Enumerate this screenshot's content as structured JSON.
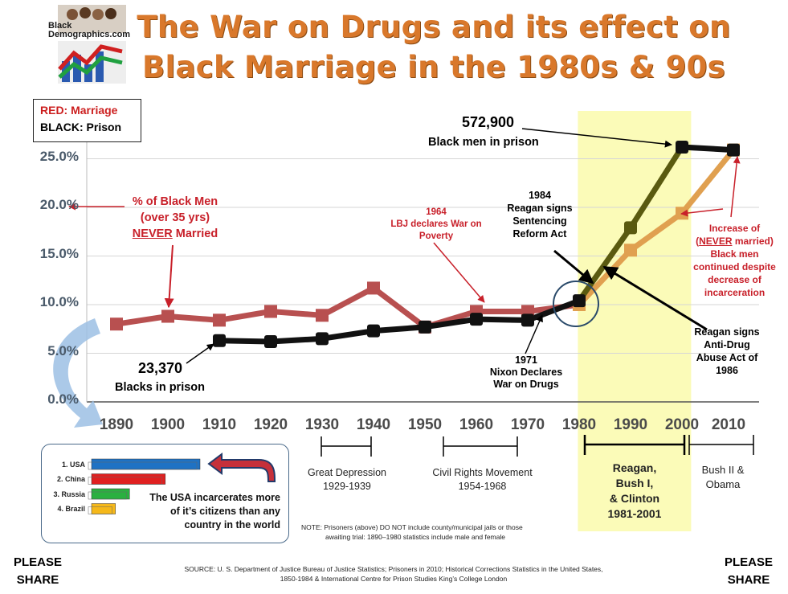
{
  "header": {
    "title_line1": "The War on Drugs and its effect on",
    "title_line2": "Black Marriage in the 1980s & 90s",
    "logo_text_line1": "Black",
    "logo_text_line2": "Demographics.com"
  },
  "legend": {
    "red_label": "RED: Marriage",
    "black_label": "BLACK: Prison"
  },
  "colors": {
    "title": "#d9782b",
    "marriage_red": "#b85050",
    "marriage_orange": "#e0a050",
    "prison_black": "#111111",
    "prison_olive": "#5a5a10",
    "highlight_yellow": "#fbfbb8",
    "annotation_red": "#c8202a"
  },
  "chart_data": {
    "type": "line",
    "x": [
      1890,
      1900,
      1910,
      1920,
      1930,
      1940,
      1950,
      1960,
      1970,
      1980,
      1990,
      2000,
      2010
    ],
    "x_tick_labels": [
      "1890",
      "1900",
      "1910",
      "1920",
      "1930",
      "1940",
      "1950",
      "1960",
      "1970",
      "1980",
      "1990",
      "2000",
      "2010"
    ],
    "y_tick_labels": [
      "0.0%",
      "5.0%",
      "10.0%",
      "15.0%",
      "20.0%",
      "25.0%"
    ],
    "ylim": [
      0,
      27
    ],
    "grid": true,
    "legend_position": "top-left",
    "series": [
      {
        "name": "RED: Marriage",
        "values": [
          8.0,
          8.8,
          8.4,
          9.3,
          8.9,
          11.7,
          7.7,
          9.3,
          9.3,
          10.0,
          15.6,
          19.4,
          25.9
        ]
      },
      {
        "name": "BLACK: Prison",
        "values": [
          null,
          null,
          6.3,
          6.2,
          6.5,
          7.3,
          7.7,
          8.5,
          8.4,
          10.4,
          17.9,
          26.2,
          25.9
        ]
      }
    ],
    "highlight_range": [
      1981,
      2001
    ]
  },
  "annotations": {
    "pct_never_married": [
      "% of Black Men",
      "(over 35 yrs)",
      "NEVER",
      " Married"
    ],
    "lbj": [
      "1964",
      "LBJ declares War on",
      "Poverty"
    ],
    "reagan_1984": [
      "1984",
      "Reagan signs",
      "Sentencing",
      "Reform Act"
    ],
    "prisoners_peak_value": "572,900",
    "prisoners_peak_label": "Black men in prison",
    "prisoners_start_value": "23,370",
    "prisoners_start_label": "Blacks in prison",
    "nixon": [
      "1971",
      "Nixon Declares",
      "War on Drugs"
    ],
    "reagan_1986": [
      "Reagan signs",
      "Anti-Drug",
      "Abuse Act of",
      "1986"
    ],
    "increase": [
      "Increase of",
      "(",
      "NEVER",
      " married)",
      "Black men",
      "continued despite",
      "decrease of",
      "incarceration"
    ]
  },
  "eras": {
    "depression": [
      "Great Depression",
      "1929-1939"
    ],
    "civil_rights": [
      "Civil Rights Movement",
      "1954-1968"
    ],
    "reagan_clinton": [
      "Reagan,",
      "Bush I,",
      "& Clinton",
      "1981-2001"
    ],
    "bush_obama": [
      "Bush II &",
      "Obama"
    ]
  },
  "panel": {
    "countries": [
      "1. USA",
      "2. China",
      "3. Russia",
      "4. Brazil"
    ],
    "bar_values": [
      100,
      68,
      35,
      22
    ],
    "bar_colors": [
      "#1f72c4",
      "#e02020",
      "#2ab040",
      "#f5b81a"
    ],
    "text": [
      "The USA incarcerates more",
      "of it’s citizens than any",
      "country in the world"
    ]
  },
  "footer": {
    "note_line1": "NOTE:  Prisoners (above) DO NOT  include county/municipal jails or those",
    "note_line2": "awaiting trial: 1890–1980 statistics include male and female",
    "source_line1": "SOURCE:  U. S. Department of Justice Bureau of Justice Statistics; Prisoners in 2010; Historical Corrections Statistics in the United States,",
    "source_line2": "1850-1984 & International Centre for Prison Studies King’s College London",
    "please": "PLEASE",
    "share": "SHARE"
  }
}
